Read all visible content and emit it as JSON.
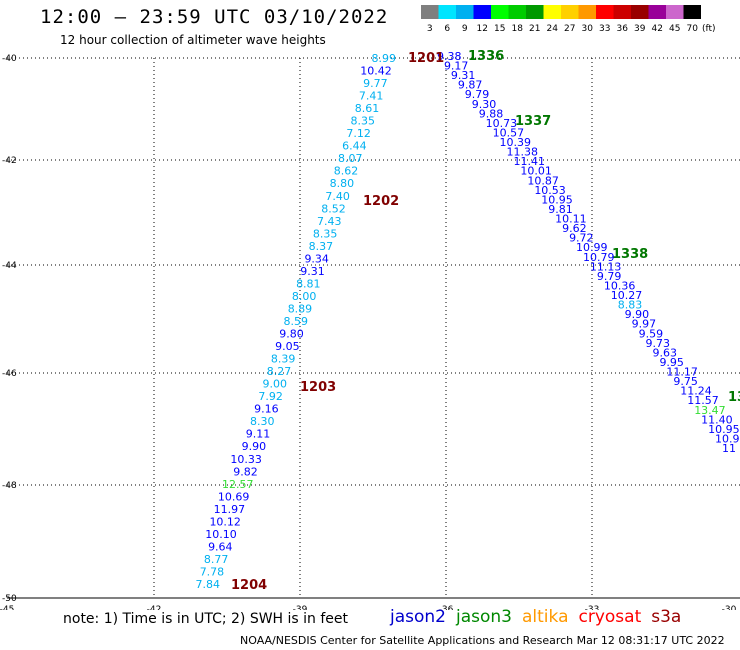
{
  "header": {
    "title": "12:00 — 23:59 UTC 03/10/2022",
    "subtitle": "12 hour collection of altimeter wave heights"
  },
  "color_scale": {
    "unit_label": "(ft)",
    "bins": [
      {
        "label": "3",
        "color": "#7f7f7f"
      },
      {
        "label": "6",
        "color": "#00e5ff"
      },
      {
        "label": "9",
        "color": "#00b0f0"
      },
      {
        "label": "12",
        "color": "#0000ff"
      },
      {
        "label": "15",
        "color": "#00ff00"
      },
      {
        "label": "18",
        "color": "#00cc00"
      },
      {
        "label": "21",
        "color": "#009900"
      },
      {
        "label": "24",
        "color": "#ffff00"
      },
      {
        "label": "27",
        "color": "#ffd000"
      },
      {
        "label": "30",
        "color": "#ff9900"
      },
      {
        "label": "33",
        "color": "#ff0000"
      },
      {
        "label": "36",
        "color": "#cc0000"
      },
      {
        "label": "39",
        "color": "#990000"
      },
      {
        "label": "42",
        "color": "#990099"
      },
      {
        "label": "45",
        "color": "#cc66cc"
      },
      {
        "label": "70",
        "color": "#000000"
      }
    ]
  },
  "map": {
    "lon_labels": [
      "-45",
      "-42",
      "-39",
      "-36",
      "-33",
      "-30"
    ],
    "lat_labels": [
      "-40",
      "-42",
      "-44",
      "-46",
      "-48",
      "-50"
    ],
    "tracks": [
      {
        "name": "descending-pass",
        "points": [
          {
            "v": "8.99",
            "c": "#00b0f0"
          },
          {
            "v": "10.42",
            "c": "#0000ff"
          },
          {
            "v": "9.77",
            "c": "#00b0f0"
          },
          {
            "v": "7.41",
            "c": "#00b0f0"
          },
          {
            "v": "8.61",
            "c": "#00b0f0"
          },
          {
            "v": "8.35",
            "c": "#00b0f0"
          },
          {
            "v": "7.12",
            "c": "#00b0f0"
          },
          {
            "v": "6.44",
            "c": "#00b0f0"
          },
          {
            "v": "8.07",
            "c": "#00b0f0"
          },
          {
            "v": "8.62",
            "c": "#00b0f0"
          },
          {
            "v": "8.80",
            "c": "#00b0f0"
          },
          {
            "v": "7.40",
            "c": "#00b0f0"
          },
          {
            "v": "8.52",
            "c": "#00b0f0"
          },
          {
            "v": "7.43",
            "c": "#00b0f0"
          },
          {
            "v": "8.35",
            "c": "#00b0f0"
          },
          {
            "v": "8.37",
            "c": "#00b0f0"
          },
          {
            "v": "9.34",
            "c": "#0000ff"
          },
          {
            "v": "9.31",
            "c": "#0000ff"
          },
          {
            "v": "8.81",
            "c": "#00b0f0"
          },
          {
            "v": "8.00",
            "c": "#00b0f0"
          },
          {
            "v": "8.89",
            "c": "#00b0f0"
          },
          {
            "v": "8.59",
            "c": "#00b0f0"
          },
          {
            "v": "9.80",
            "c": "#0000ff"
          },
          {
            "v": "9.05",
            "c": "#0000ff"
          },
          {
            "v": "8.39",
            "c": "#00b0f0"
          },
          {
            "v": "8.27",
            "c": "#00b0f0"
          },
          {
            "v": "9.00",
            "c": "#00b0f0"
          },
          {
            "v": "7.92",
            "c": "#00b0f0"
          },
          {
            "v": "9.16",
            "c": "#0000ff"
          },
          {
            "v": "8.30",
            "c": "#00b0f0"
          },
          {
            "v": "9.11",
            "c": "#0000ff"
          },
          {
            "v": "9.90",
            "c": "#0000ff"
          },
          {
            "v": "10.33",
            "c": "#0000ff"
          },
          {
            "v": "9.82",
            "c": "#0000ff"
          },
          {
            "v": "12.57",
            "c": "#33dd33"
          },
          {
            "v": "10.69",
            "c": "#0000ff"
          },
          {
            "v": "11.97",
            "c": "#0000ff"
          },
          {
            "v": "10.12",
            "c": "#0000ff"
          },
          {
            "v": "10.10",
            "c": "#0000ff"
          },
          {
            "v": "9.64",
            "c": "#0000ff"
          },
          {
            "v": "8.77",
            "c": "#00b0f0"
          },
          {
            "v": "7.78",
            "c": "#00b0f0"
          },
          {
            "v": "7.84",
            "c": "#00b0f0"
          }
        ]
      },
      {
        "name": "ascending-pass",
        "points": [
          {
            "v": "9.38",
            "c": "#0000ff"
          },
          {
            "v": "9.17",
            "c": "#0000ff"
          },
          {
            "v": "9.31",
            "c": "#0000ff"
          },
          {
            "v": "9.87",
            "c": "#0000ff"
          },
          {
            "v": "9.79",
            "c": "#0000ff"
          },
          {
            "v": "9.30",
            "c": "#0000ff"
          },
          {
            "v": "9.88",
            "c": "#0000ff"
          },
          {
            "v": "10.73",
            "c": "#0000ff"
          },
          {
            "v": "10.57",
            "c": "#0000ff"
          },
          {
            "v": "10.39",
            "c": "#0000ff"
          },
          {
            "v": "11.38",
            "c": "#0000ff"
          },
          {
            "v": "11.41",
            "c": "#0000ff"
          },
          {
            "v": "10.01",
            "c": "#0000ff"
          },
          {
            "v": "10.87",
            "c": "#0000ff"
          },
          {
            "v": "10.53",
            "c": "#0000ff"
          },
          {
            "v": "10.95",
            "c": "#0000ff"
          },
          {
            "v": "9.81",
            "c": "#0000ff"
          },
          {
            "v": "10.11",
            "c": "#0000ff"
          },
          {
            "v": "9.62",
            "c": "#0000ff"
          },
          {
            "v": "9.72",
            "c": "#0000ff"
          },
          {
            "v": "10.99",
            "c": "#0000ff"
          },
          {
            "v": "10.79",
            "c": "#0000ff"
          },
          {
            "v": "11.13",
            "c": "#0000ff"
          },
          {
            "v": "9.79",
            "c": "#0000ff"
          },
          {
            "v": "10.36",
            "c": "#0000ff"
          },
          {
            "v": "10.27",
            "c": "#0000ff"
          },
          {
            "v": "8.83",
            "c": "#00b0f0"
          },
          {
            "v": "9.90",
            "c": "#0000ff"
          },
          {
            "v": "9.97",
            "c": "#0000ff"
          },
          {
            "v": "9.59",
            "c": "#0000ff"
          },
          {
            "v": "9.73",
            "c": "#0000ff"
          },
          {
            "v": "9.63",
            "c": "#0000ff"
          },
          {
            "v": "9.95",
            "c": "#0000ff"
          },
          {
            "v": "11.17",
            "c": "#0000ff"
          },
          {
            "v": "9.75",
            "c": "#0000ff"
          },
          {
            "v": "11.24",
            "c": "#0000ff"
          },
          {
            "v": "11.57",
            "c": "#0000ff"
          },
          {
            "v": "13.47",
            "c": "#33dd33"
          },
          {
            "v": "11.40",
            "c": "#0000ff"
          },
          {
            "v": "10.95",
            "c": "#0000ff"
          },
          {
            "v": "10.9",
            "c": "#0000ff"
          },
          {
            "v": "11",
            "c": "#0000ff"
          }
        ]
      }
    ],
    "time_labels": [
      {
        "t": "1201",
        "c": "#800000"
      },
      {
        "t": "1202",
        "c": "#800000"
      },
      {
        "t": "1203",
        "c": "#800000"
      },
      {
        "t": "1204",
        "c": "#800000"
      },
      {
        "t": "1336",
        "c": "#007700"
      },
      {
        "t": "1337",
        "c": "#007700"
      },
      {
        "t": "1338",
        "c": "#007700"
      },
      {
        "t": "13",
        "c": "#007700"
      }
    ]
  },
  "footer": {
    "note": "note:  1) Time is in UTC;  2) SWH is in feet",
    "satellites": [
      {
        "name": "jason2",
        "color": "#0000cc"
      },
      {
        "name": "jason3",
        "color": "#008800"
      },
      {
        "name": "altika",
        "color": "#ff9900"
      },
      {
        "name": "cryosat",
        "color": "#ff0000"
      },
      {
        "name": "s3a",
        "color": "#990000"
      }
    ],
    "credit": "NOAA/NESDIS Center for Satellite Applications and Research   Mar 12 08:31:17 UTC 2022"
  }
}
